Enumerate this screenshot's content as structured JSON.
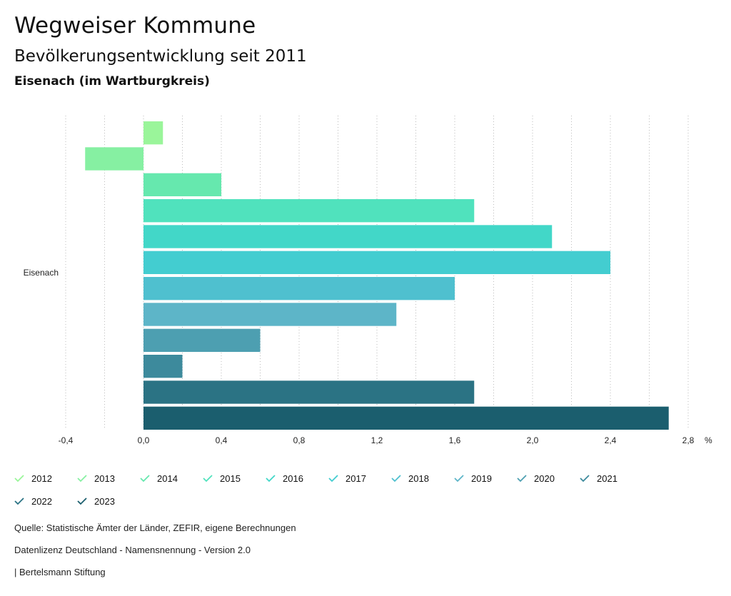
{
  "header": {
    "title": "Wegweiser Kommune",
    "subtitle": "Bevölkerungsentwicklung seit 2011",
    "region": "Eisenach (im Wartburgkreis)"
  },
  "chart_data": {
    "type": "bar",
    "orientation": "horizontal",
    "categories": [
      "Eisenach"
    ],
    "series": [
      {
        "name": "2012",
        "values": [
          0.1
        ],
        "color": "#9af59a"
      },
      {
        "name": "2013",
        "values": [
          -0.3
        ],
        "color": "#86f0a2"
      },
      {
        "name": "2014",
        "values": [
          0.4
        ],
        "color": "#66e8ae"
      },
      {
        "name": "2015",
        "values": [
          1.7
        ],
        "color": "#50e2bd"
      },
      {
        "name": "2016",
        "values": [
          2.1
        ],
        "color": "#42d7c8"
      },
      {
        "name": "2017",
        "values": [
          2.4
        ],
        "color": "#43cdd0"
      },
      {
        "name": "2018",
        "values": [
          1.6
        ],
        "color": "#4fc0cf"
      },
      {
        "name": "2019",
        "values": [
          1.3
        ],
        "color": "#5db5c8"
      },
      {
        "name": "2020",
        "values": [
          0.6
        ],
        "color": "#4d9fb1"
      },
      {
        "name": "2021",
        "values": [
          0.2
        ],
        "color": "#3d8a9c"
      },
      {
        "name": "2022",
        "values": [
          1.7
        ],
        "color": "#2b7384"
      },
      {
        "name": "2023",
        "values": [
          2.7
        ],
        "color": "#1b5e6e"
      }
    ],
    "xlim": [
      -0.4,
      2.8
    ],
    "xticks": [
      "-0,4",
      "0,0",
      "0,4",
      "0,8",
      "1,2",
      "1,6",
      "2,0",
      "2,4",
      "2,8"
    ],
    "xtick_values": [
      -0.4,
      0.0,
      0.4,
      0.8,
      1.2,
      1.6,
      2.0,
      2.4,
      2.8
    ],
    "xunit": "%",
    "grid": true,
    "legend_position": "bottom"
  },
  "footer": {
    "source": "Quelle: Statistische Ämter der Länder, ZEFIR, eigene Berechnungen",
    "license": "Datenlizenz Deutschland - Namensnennung - Version 2.0",
    "publisher": "| Bertelsmann Stiftung"
  }
}
